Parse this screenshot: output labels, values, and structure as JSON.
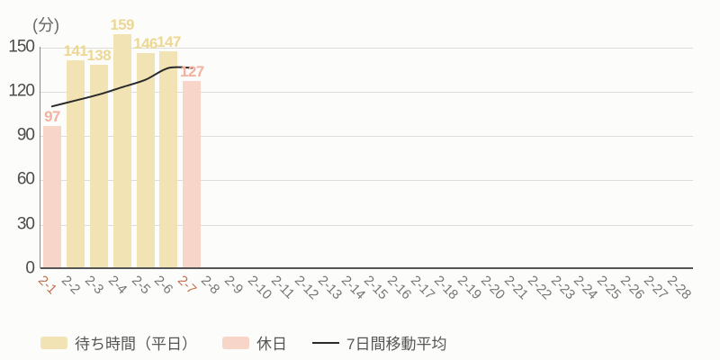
{
  "chart_data": {
    "type": "bar+line",
    "title": "",
    "ylabel": "(分)",
    "ylim": [
      0,
      150
    ],
    "yticks": [
      0,
      30,
      60,
      90,
      120,
      150
    ],
    "categories": [
      "2-1",
      "2-2",
      "2-3",
      "2-4",
      "2-5",
      "2-6",
      "2-7",
      "2-8",
      "2-9",
      "2-10",
      "2-11",
      "2-12",
      "2-13",
      "2-14",
      "2-15",
      "2-16",
      "2-17",
      "2-18",
      "2-19",
      "2-20",
      "2-21",
      "2-22",
      "2-23",
      "2-24",
      "2-25",
      "2-26",
      "2-27",
      "2-28"
    ],
    "holiday_categories": [
      "2-1",
      "2-7"
    ],
    "series": [
      {
        "name": "待ち時間（平日）",
        "type": "bar",
        "values": [
          null,
          141,
          138,
          159,
          146,
          147,
          null,
          null,
          null,
          null,
          null,
          null,
          null,
          null,
          null,
          null,
          null,
          null,
          null,
          null,
          null,
          null,
          null,
          null,
          null,
          null,
          null,
          null
        ]
      },
      {
        "name": "休日",
        "type": "bar",
        "values": [
          97,
          null,
          null,
          null,
          null,
          null,
          127,
          null,
          null,
          null,
          null,
          null,
          null,
          null,
          null,
          null,
          null,
          null,
          null,
          null,
          null,
          null,
          null,
          null,
          null,
          null,
          null,
          null
        ]
      },
      {
        "name": "7日間移動平均",
        "type": "line",
        "values": [
          110,
          114,
          118,
          123,
          128,
          136,
          136,
          null,
          null,
          null,
          null,
          null,
          null,
          null,
          null,
          null,
          null,
          null,
          null,
          null,
          null,
          null,
          null,
          null,
          null,
          null,
          null,
          null
        ]
      }
    ],
    "bar_values": [
      97,
      141,
      138,
      159,
      146,
      147,
      127
    ],
    "day_types": [
      "holiday",
      "weekday",
      "weekday",
      "weekday",
      "weekday",
      "weekday",
      "holiday"
    ],
    "grid": true,
    "legend_position": "bottom"
  },
  "colors": {
    "weekday_bar": "#f1e3b3",
    "holiday_bar": "#f7d5c8",
    "weekday_label": "#ecd795",
    "holiday_label": "#f3b1a0",
    "weekday_tick": "#767676",
    "holiday_tick": "#c0714f",
    "line": "#2a2a2a",
    "background": "#fcfcfa"
  },
  "legend": [
    {
      "label": "待ち時間（平日）",
      "type": "weekday-bar",
      "color": "#f1e3b3"
    },
    {
      "label": "休日",
      "type": "holiday-bar",
      "color": "#f7d5c8"
    },
    {
      "label": "7日間移動平均",
      "type": "line",
      "color": "#2a2a2a"
    }
  ]
}
